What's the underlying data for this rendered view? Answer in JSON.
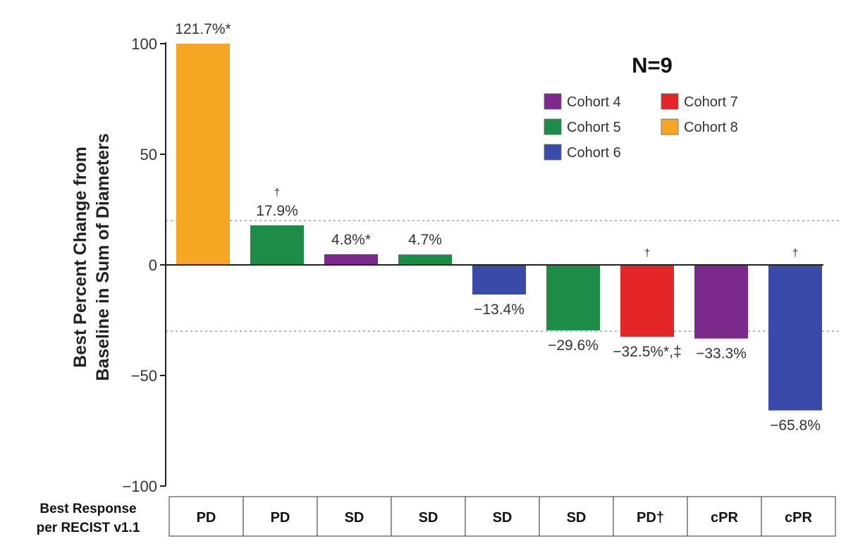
{
  "chart_data": {
    "type": "bar",
    "title": "",
    "xlabel": "",
    "ylabel": [
      "Best Percent Change from",
      "Baseline in Sum of Diameters"
    ],
    "ylim": [
      -100,
      100
    ],
    "yticks": [
      100,
      50,
      0,
      -50,
      -100
    ],
    "y_tick_labels": [
      "100",
      "50",
      "0",
      "−50",
      "−100"
    ],
    "reference_lines": [
      20,
      -30
    ],
    "annotation": "N=9",
    "legend": {
      "placement": "top-right",
      "entries": [
        {
          "name": "Cohort 4",
          "color": "#7b2a8c"
        },
        {
          "name": "Cohort 7",
          "color": "#e52629"
        },
        {
          "name": "Cohort 5",
          "color": "#1e8c49"
        },
        {
          "name": "Cohort 8",
          "color": "#f5a623"
        },
        {
          "name": "Cohort 6",
          "color": "#3a4aa8"
        }
      ]
    },
    "bars": [
      {
        "value": 121.7,
        "display_value": 100,
        "label": "121.7%*",
        "cohort": "Cohort 8",
        "dagger": "",
        "response": "PD"
      },
      {
        "value": 17.9,
        "display_value": 17.9,
        "label": "17.9%",
        "cohort": "Cohort 5",
        "dagger": "†",
        "response": "PD"
      },
      {
        "value": 4.8,
        "display_value": 4.8,
        "label": "4.8%*",
        "cohort": "Cohort 4",
        "dagger": "",
        "response": "SD"
      },
      {
        "value": 4.7,
        "display_value": 4.7,
        "label": "4.7%",
        "cohort": "Cohort 5",
        "dagger": "",
        "response": "SD"
      },
      {
        "value": -13.4,
        "display_value": -13.4,
        "label": "−13.4%",
        "cohort": "Cohort 6",
        "dagger": "",
        "response": "SD"
      },
      {
        "value": -29.6,
        "display_value": -29.6,
        "label": "−29.6%",
        "cohort": "Cohort 5",
        "dagger": "",
        "response": "SD"
      },
      {
        "value": -32.5,
        "display_value": -32.5,
        "label": "−32.5%*,‡",
        "cohort": "Cohort 7",
        "dagger": "†",
        "response": "PD†"
      },
      {
        "value": -33.3,
        "display_value": -33.3,
        "label": "−33.3%",
        "cohort": "Cohort 4",
        "dagger": "",
        "response": "cPR"
      },
      {
        "value": -65.8,
        "display_value": -65.8,
        "label": "−65.8%",
        "cohort": "Cohort 6",
        "dagger": "†",
        "response": "cPR"
      }
    ],
    "response_table": {
      "header": [
        "Best Response",
        "per RECIST v1.1"
      ]
    }
  },
  "colors": {
    "Cohort 4": "#7b2a8c",
    "Cohort 5": "#1e8c49",
    "Cohort 6": "#3a4aa8",
    "Cohort 7": "#e52629",
    "Cohort 8": "#f5a623"
  }
}
